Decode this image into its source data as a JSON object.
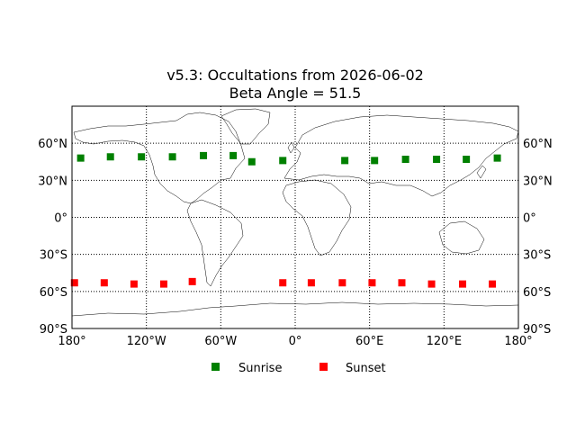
{
  "chart_data": {
    "type": "scatter",
    "title_line1": "v5.3: Occultations from 2026-06-02",
    "title_line2": "Beta Angle = 51.5",
    "xlim": [
      -180,
      180
    ],
    "ylim": [
      -90,
      90
    ],
    "grid": true,
    "legend_placement": "bottom-center",
    "x_ticks": [
      {
        "value": -180,
        "label": "180°"
      },
      {
        "value": -120,
        "label": "120°W"
      },
      {
        "value": -60,
        "label": "60°W"
      },
      {
        "value": 0,
        "label": "0°"
      },
      {
        "value": 60,
        "label": "60°E"
      },
      {
        "value": 120,
        "label": "120°E"
      },
      {
        "value": 180,
        "label": "180°"
      }
    ],
    "y_ticks": [
      {
        "value": 60,
        "label": "60°N"
      },
      {
        "value": 30,
        "label": "30°N"
      },
      {
        "value": 0,
        "label": "0°"
      },
      {
        "value": -30,
        "label": "30°S"
      },
      {
        "value": -60,
        "label": "60°S"
      },
      {
        "value": -90,
        "label": "90°S"
      }
    ],
    "series": [
      {
        "name": "Sunrise",
        "color": "#008000",
        "marker": "square",
        "x": [
          -173,
          -149,
          -124,
          -99,
          -74,
          -50,
          -35,
          -10,
          40,
          64,
          89,
          114,
          138,
          163
        ],
        "y": [
          48,
          49,
          49,
          49,
          50,
          50,
          45,
          46,
          46,
          46,
          47,
          47,
          47,
          48
        ]
      },
      {
        "name": "Sunset",
        "color": "#ff0000",
        "marker": "square",
        "x": [
          -178,
          -154,
          -130,
          -106,
          -83,
          -10,
          13,
          38,
          62,
          86,
          110,
          135,
          159
        ],
        "y": [
          -53,
          -53,
          -54,
          -54,
          -52,
          -53,
          -53,
          -53,
          -53,
          -53,
          -54,
          -54,
          -54
        ]
      }
    ]
  }
}
